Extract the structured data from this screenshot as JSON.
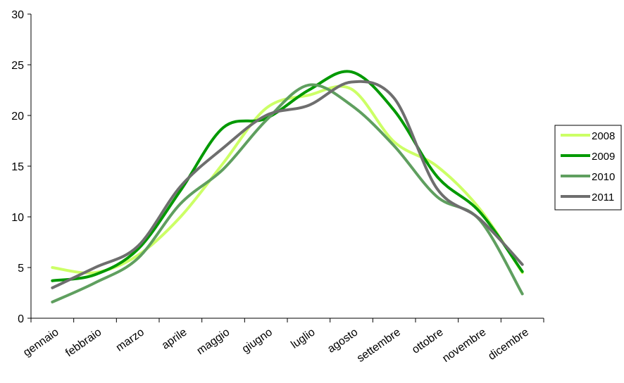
{
  "chart_data": {
    "type": "line",
    "title": "",
    "xlabel": "",
    "ylabel": "",
    "ylim": [
      0,
      30
    ],
    "yticks": [
      0,
      5,
      10,
      15,
      20,
      25,
      30
    ],
    "grid": false,
    "legend_position": "right",
    "categories": [
      "gennaio",
      "febbraio",
      "marzo",
      "aprile",
      "maggio",
      "giugno",
      "luglio",
      "agosto",
      "settembre",
      "ottobre",
      "novembre",
      "dicembre"
    ],
    "series": [
      {
        "name": "2008",
        "color": "#ccff66",
        "values": [
          5.0,
          4.5,
          6.2,
          10.0,
          15.3,
          20.7,
          22.0,
          22.6,
          17.4,
          15.0,
          10.8,
          4.5
        ]
      },
      {
        "name": "2009",
        "color": "#009900",
        "values": [
          3.7,
          4.3,
          6.8,
          12.6,
          18.8,
          19.7,
          22.5,
          24.3,
          20.5,
          14.0,
          10.5,
          4.6
        ]
      },
      {
        "name": "2010",
        "color": "#5f9f5f",
        "values": [
          1.6,
          3.5,
          5.9,
          11.3,
          14.7,
          19.5,
          23.0,
          21.0,
          17.0,
          12.0,
          9.7,
          2.4
        ]
      },
      {
        "name": "2011",
        "color": "#6e6e6e",
        "values": [
          3.0,
          5.0,
          7.1,
          13.0,
          16.8,
          20.0,
          21.0,
          23.3,
          21.7,
          12.8,
          9.8,
          5.3
        ]
      }
    ]
  }
}
